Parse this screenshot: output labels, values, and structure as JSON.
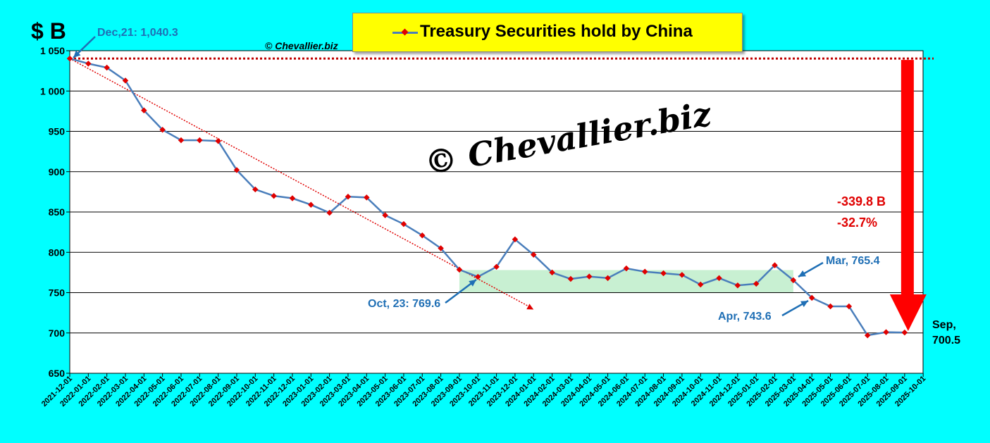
{
  "page": {
    "unit_label": "$ B",
    "copyright_small": "© Chevallier.biz",
    "watermark": "© Chevallier.biz"
  },
  "colors": {
    "background": "#00ffff",
    "series_line": "#4a7ebb",
    "series_marker": "#e00000",
    "reference": "#c00000",
    "arrow": "#ff0000",
    "band": "#c8f0d2",
    "annotation": "#1f6fb5"
  },
  "chart_data": {
    "type": "line",
    "title": "Treasury Securities hold by China",
    "ylabel": "$ B",
    "ylim": [
      650,
      1050
    ],
    "yticks": [
      650,
      700,
      750,
      800,
      850,
      900,
      950,
      1000,
      1050
    ],
    "ytick_labels": [
      "650",
      "700",
      "750",
      "800",
      "850",
      "900",
      "950",
      "1 000",
      "1 050"
    ],
    "grid": true,
    "legend": "top-center",
    "categories": [
      "2021-12-01",
      "2022-01-01",
      "2022-02-01",
      "2022-03-01",
      "2022-04-01",
      "2022-05-01",
      "2022-06-01",
      "2022-07-01",
      "2022-08-01",
      "2022-09-01",
      "2022-10-01",
      "2022-11-01",
      "2022-12-01",
      "2023-01-01",
      "2023-02-01",
      "2023-03-01",
      "2023-04-01",
      "2023-05-01",
      "2023-06-01",
      "2023-07-01",
      "2023-08-01",
      "2023-09-01",
      "2023-10-01",
      "2023-11-01",
      "2023-12-01",
      "2024-01-01",
      "2024-02-01",
      "2024-03-01",
      "2024-04-01",
      "2024-05-01",
      "2024-06-01",
      "2024-07-01",
      "2024-08-01",
      "2024-09-01",
      "2024-10-01",
      "2024-11-01",
      "2024-12-01",
      "2025-01-01",
      "2025-02-01",
      "2025-03-01",
      "2025-04-01",
      "2025-05-01",
      "2025-06-01",
      "2025-07-01",
      "2025-08-01",
      "2025-09-01",
      "2025-10-01"
    ],
    "series": [
      {
        "name": "Treasury Securities hold by China",
        "values": [
          1040.3,
          1034,
          1029,
          1013,
          976,
          952,
          939,
          939,
          938,
          902,
          878,
          870,
          867,
          859,
          849,
          869,
          868,
          846,
          835,
          821,
          805,
          778.5,
          769.6,
          782,
          816,
          797,
          775,
          767,
          770,
          768,
          780,
          776,
          774,
          772,
          760,
          768,
          759,
          761,
          784,
          765.4,
          743.6,
          733,
          733,
          697,
          701,
          700.5,
          null
        ]
      }
    ],
    "reference_level": 1040.3,
    "trend_line": {
      "from": [
        "2021-12-01",
        1040.3
      ],
      "to": [
        "2024-01-01",
        729
      ]
    },
    "band": {
      "from": "2023-09-01",
      "to": "2025-03-01",
      "ymin": 750,
      "ymax": 778
    },
    "annotations": [
      {
        "id": "dec21",
        "text": "Dec,21: 1,040.3"
      },
      {
        "id": "oct23",
        "text": "Oct, 23: 769.6"
      },
      {
        "id": "mar25",
        "text": "Mar, 765.4"
      },
      {
        "id": "apr25",
        "text": "Apr, 743.6"
      },
      {
        "id": "sep25_a",
        "text": "Sep,"
      },
      {
        "id": "sep25_b",
        "text": "700.5"
      },
      {
        "id": "delta_abs",
        "text": "-339.8 B"
      },
      {
        "id": "delta_pct",
        "text": "-32.7%"
      }
    ]
  }
}
